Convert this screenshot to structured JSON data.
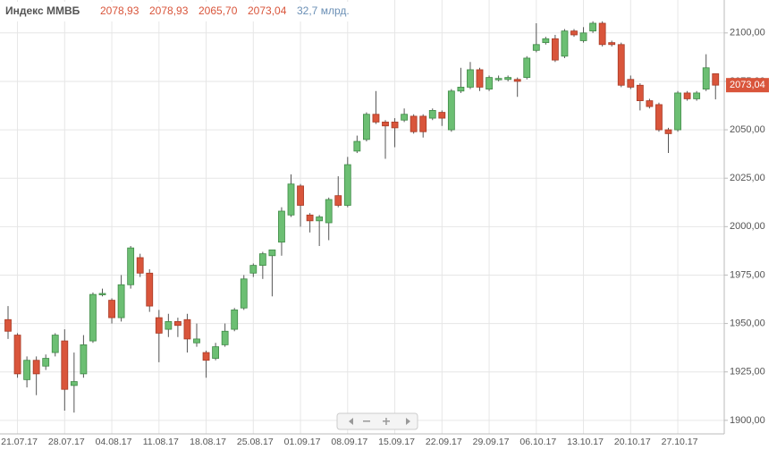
{
  "chart_data": {
    "type": "candlestick",
    "header": {
      "title": "Индекс ММВБ",
      "values": [
        "2078,93",
        "2078,93",
        "2065,70",
        "2073,04"
      ],
      "volume": "32,7 млрд."
    },
    "categories": [
      null,
      "21.07.17",
      null,
      null,
      null,
      null,
      "28.07.17",
      null,
      null,
      null,
      null,
      "04.08.17",
      null,
      null,
      null,
      null,
      "11.08.17",
      null,
      null,
      null,
      null,
      "18.08.17",
      null,
      null,
      null,
      null,
      "25.08.17",
      null,
      null,
      null,
      null,
      "01.09.17",
      null,
      null,
      null,
      null,
      "08.09.17",
      null,
      null,
      null,
      null,
      "15.09.17",
      null,
      null,
      null,
      null,
      "22.09.17",
      null,
      null,
      null,
      null,
      "29.09.17",
      null,
      null,
      null,
      null,
      "06.10.17",
      null,
      null,
      null,
      null,
      "13.10.17",
      null,
      null,
      null,
      null,
      "20.10.17",
      null,
      null,
      null,
      null,
      "27.10.17",
      null,
      null,
      null,
      null
    ],
    "open": [
      1952,
      1944,
      1921,
      1931,
      1928,
      1935,
      1941,
      1918,
      1924,
      1941,
      1965,
      1962,
      1953,
      1970,
      1984,
      1976,
      1953,
      1947,
      1951,
      1952,
      1940,
      1935,
      1932,
      1939,
      1947,
      1958,
      1976,
      1980,
      1985,
      1992,
      2006,
      2021,
      2006,
      2003,
      2002,
      2016,
      2011,
      2039,
      2045,
      2058,
      2054,
      2054,
      2055,
      2057,
      2057,
      2056,
      2059,
      2050,
      2070,
      2072,
      2081,
      2071,
      2076,
      2076,
      2076,
      2077,
      2091,
      2095,
      2097,
      2088,
      2101,
      2096,
      2101,
      2105,
      2095,
      2094,
      2076,
      2073,
      2065,
      2063,
      2050,
      2050,
      2069,
      2066,
      2071,
      2078.93
    ],
    "high": [
      1959,
      1945,
      1933,
      1933,
      1934,
      1945,
      1947,
      1935,
      1944,
      1966,
      1968,
      1963,
      1975,
      1990,
      1986,
      1978,
      1957,
      1955,
      1953,
      1955,
      1950,
      1936,
      1940,
      1950,
      1958,
      1975,
      1981,
      1987,
      1988,
      2010,
      2027,
      2022,
      2007,
      2006,
      2015,
      2026,
      2036,
      2047,
      2059,
      2070,
      2055,
      2056,
      2061,
      2058,
      2058,
      2061,
      2060,
      2071,
      2082,
      2085,
      2082,
      2078,
      2078,
      2078,
      2077,
      2088,
      2105,
      2098,
      2099,
      2102,
      2102,
      2103,
      2106,
      2106,
      2096,
      2095,
      2078,
      2074,
      2066,
      2064,
      2051,
      2070,
      2070,
      2070,
      2089,
      2078.93
    ],
    "low": [
      1942,
      1922,
      1917,
      1913,
      1926,
      1933,
      1905,
      1904,
      1922,
      1940,
      1964,
      1950,
      1951,
      1968,
      1974,
      1956,
      1930,
      1943,
      1943,
      1935,
      1938,
      1922,
      1931,
      1938,
      1946,
      1957,
      1974,
      1973,
      1964,
      1985,
      2005,
      2000,
      1997,
      1990,
      1993,
      2010,
      2010,
      2038,
      2044,
      2053,
      2035,
      2041,
      2054,
      2048,
      2046,
      2055,
      2052,
      2049,
      2069,
      2071,
      2070,
      2070,
      2075,
      2075,
      2067,
      2076,
      2090,
      2094,
      2085,
      2087,
      2098,
      2095,
      2100,
      2093,
      2093,
      2072,
      2071,
      2060,
      2061,
      2049,
      2038,
      2049,
      2065,
      2065,
      2070,
      2065.7
    ],
    "close": [
      1946,
      1924,
      1931,
      1924,
      1932,
      1944,
      1916,
      1920,
      1939,
      1965,
      1965.5,
      1953,
      1970,
      1989,
      1976,
      1959,
      1945,
      1951,
      1949,
      1942,
      1942,
      1931,
      1938,
      1946,
      1957,
      1973,
      1980,
      1986,
      1988,
      2008,
      2022,
      2011,
      2003,
      2005,
      2014,
      2011,
      2032,
      2044,
      2058,
      2054,
      2052,
      2051,
      2058,
      2049,
      2049,
      2060,
      2056,
      2070,
      2072,
      2081,
      2072,
      2077,
      2076.5,
      2077,
      2075,
      2087,
      2094,
      2097,
      2086,
      2101,
      2099,
      2100,
      2105,
      2094,
      2094,
      2073,
      2072,
      2065,
      2062,
      2050,
      2048,
      2069,
      2066,
      2069,
      2082,
      2073.04
    ],
    "up_color": "#6cbf73",
    "down_color": "#d9553b",
    "ylim": [
      1893,
      2117
    ],
    "yticks": [
      {
        "value": 1900,
        "label": "1900,00"
      },
      {
        "value": 1925,
        "label": "1925,00"
      },
      {
        "value": 1950,
        "label": "1950,00"
      },
      {
        "value": 1975,
        "label": "1975,00"
      },
      {
        "value": 2000,
        "label": "2000,00"
      },
      {
        "value": 2025,
        "label": "2025,00"
      },
      {
        "value": 2050,
        "label": "2050,00"
      },
      {
        "value": 2075,
        "label": "2075,00"
      },
      {
        "value": 2100,
        "label": "2100,00"
      }
    ],
    "last_price": {
      "value": 2073.04,
      "label": "2073,04"
    },
    "grid": true
  }
}
